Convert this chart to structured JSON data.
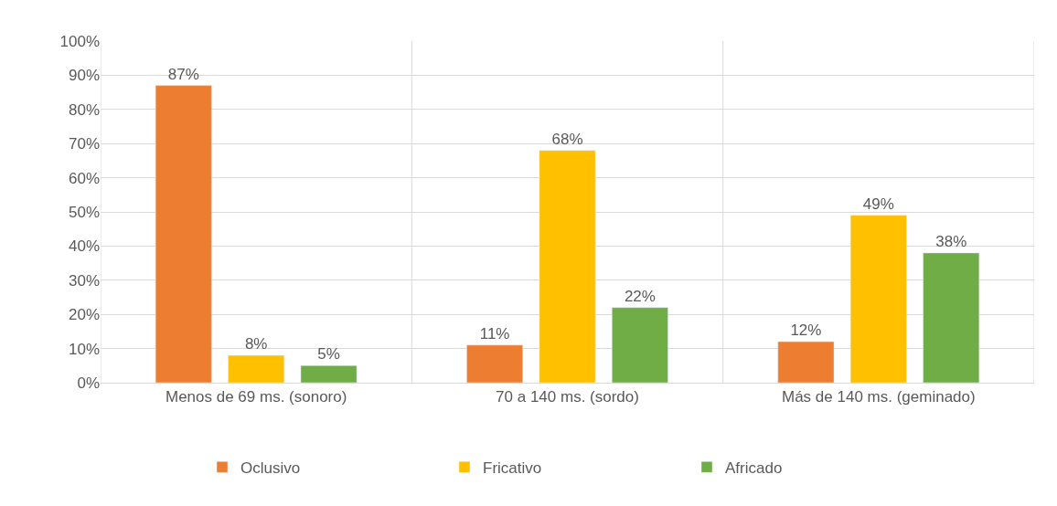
{
  "chart_data": {
    "type": "bar",
    "categories": [
      "Menos de 69 ms. (sonoro)",
      "70 a 140 ms. (sordo)",
      "Más de 140 ms. (geminado)"
    ],
    "series": [
      {
        "name": "Oclusivo",
        "color": "#ed7d31",
        "values": [
          87,
          11,
          12
        ],
        "value_labels": [
          "87%",
          "11%",
          "12%"
        ]
      },
      {
        "name": "Fricativo",
        "color": "#ffc000",
        "values": [
          8,
          68,
          49
        ],
        "value_labels": [
          "8%",
          "68%",
          "49%"
        ]
      },
      {
        "name": "Africado",
        "color": "#70ad47",
        "values": [
          5,
          22,
          38
        ],
        "value_labels": [
          "5%",
          "22%",
          "38%"
        ]
      }
    ],
    "ylim": [
      0,
      100
    ],
    "yticks": [
      {
        "value": 0,
        "label": "0%"
      },
      {
        "value": 10,
        "label": "10%"
      },
      {
        "value": 20,
        "label": "20%"
      },
      {
        "value": 30,
        "label": "30%"
      },
      {
        "value": 40,
        "label": "40%"
      },
      {
        "value": 50,
        "label": "50%"
      },
      {
        "value": 60,
        "label": "60%"
      },
      {
        "value": 70,
        "label": "70%"
      },
      {
        "value": 80,
        "label": "80%"
      },
      {
        "value": 90,
        "label": "90%"
      },
      {
        "value": 100,
        "label": "100%"
      }
    ],
    "grid": true,
    "legend": "bottom"
  }
}
